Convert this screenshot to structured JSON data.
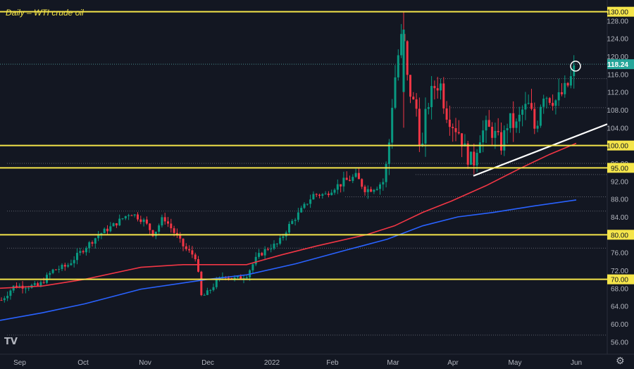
{
  "chart_data": {
    "type": "candlestick",
    "title": "Daily – WTI crude oil",
    "x_ticks": [
      "Sep",
      "Oct",
      "Nov",
      "Dec",
      "2022",
      "Feb",
      "Mar",
      "Apr",
      "May",
      "Jun"
    ],
    "y_ticks": [
      "56.00",
      "60.00",
      "64.00",
      "68.00",
      "72.00",
      "76.00",
      "80.00",
      "84.00",
      "88.00",
      "92.00",
      "96.00",
      "100.00",
      "104.00",
      "108.00",
      "112.00",
      "116.00",
      "120.00",
      "124.00",
      "128.00"
    ],
    "ylim": [
      54,
      132
    ],
    "last_price": "118.24",
    "last_price_value": 118.24,
    "horizontal_levels": [
      {
        "value": 130,
        "label": "130.00"
      },
      {
        "value": 100,
        "label": "100.00"
      },
      {
        "value": 95,
        "label": "95.00"
      },
      {
        "value": 80,
        "label": "80.00"
      },
      {
        "value": 70,
        "label": "70.00"
      }
    ],
    "key_points": [
      {
        "date": "Sep",
        "price": 68
      },
      {
        "date": "Oct",
        "price": 78
      },
      {
        "date": "Nov",
        "price": 84
      },
      {
        "date": "Dec",
        "price": 66
      },
      {
        "date": "2022",
        "price": 76
      },
      {
        "date": "Feb",
        "price": 90
      },
      {
        "date": "Mar",
        "price": 110
      },
      {
        "date": "Mar",
        "price": 130
      },
      {
        "date": "Apr",
        "price": 100
      },
      {
        "date": "May",
        "price": 104
      },
      {
        "date": "Jun",
        "price": 118.24
      }
    ],
    "series": [
      {
        "name": "",
        "color": "#f23645"
      },
      {
        "name": "",
        "color": "#2962ff"
      }
    ],
    "colors": {
      "up": "#089981",
      "down": "#f23645",
      "level": "#f5e54a",
      "trend": "#ffffff"
    }
  },
  "ui": {
    "logo": "TV",
    "settings_icon": "⚙"
  }
}
